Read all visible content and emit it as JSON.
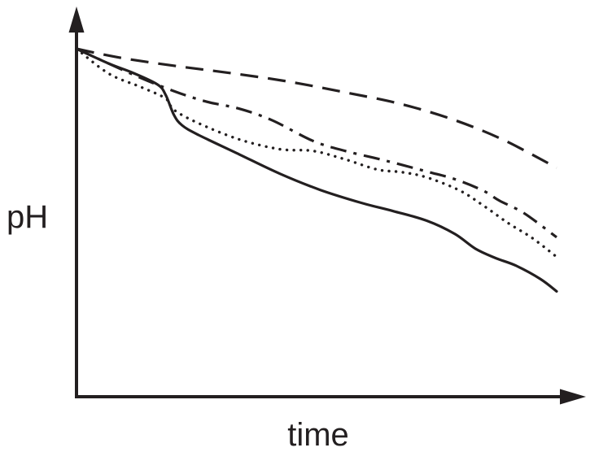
{
  "chart_data": {
    "type": "line",
    "title": "",
    "xlabel": "time",
    "ylabel": "pH",
    "xlim": [
      0,
      100
    ],
    "ylim": [
      0,
      100
    ],
    "grid": false,
    "legend": "none",
    "axis_color": "#231f20",
    "series": [
      {
        "style": "dashed",
        "x": [
          0,
          9.3,
          21.2,
          32.2,
          44.1,
          55.9,
          67.8,
          78.8,
          89.0,
          100
        ],
        "y": [
          100,
          96.1,
          92.5,
          89.6,
          86.0,
          81.4,
          76.3,
          69.5,
          61.0,
          49.2
        ]
      },
      {
        "style": "dashdot",
        "x": [
          0,
          11.9,
          20.3,
          27.1,
          33.9,
          40.7,
          49.2,
          55.9,
          64.4,
          72.9,
          78.8,
          84.7,
          88.1,
          93.2,
          100
        ],
        "y": [
          100,
          88.9,
          81.9,
          77.4,
          74.4,
          69.5,
          60.7,
          56.4,
          52.2,
          47.6,
          44.3,
          39.4,
          35.1,
          29.8,
          19.5
        ]
      },
      {
        "style": "dotted",
        "x": [
          0,
          6.8,
          13.6,
          18.6,
          20.3,
          25.4,
          33.9,
          42.4,
          49.2,
          55.9,
          62.7,
          67.8,
          72.9,
          79.7,
          84.7,
          89.8,
          94.9,
          100
        ],
        "y": [
          100,
          89.3,
          83.5,
          78.7,
          73.9,
          68.2,
          61.3,
          57.1,
          56.4,
          52.8,
          48.4,
          47.3,
          45.1,
          39.6,
          33.1,
          25.7,
          19.2,
          11.1
        ]
      },
      {
        "style": "solid",
        "x": [
          0,
          6.8,
          11.9,
          16.9,
          18.6,
          20.3,
          22.0,
          25.4,
          33.9,
          42.4,
          50.8,
          59.3,
          66.1,
          72.9,
          78.8,
          83.1,
          87.3,
          91.5,
          96.6,
          100
        ],
        "y": [
          100,
          93.6,
          89.6,
          84.7,
          80.2,
          71.7,
          67.3,
          63.2,
          54.9,
          46.6,
          39.7,
          34.2,
          30.6,
          26.6,
          20.9,
          14.6,
          10.6,
          7.4,
          1.7,
          -3.6
        ]
      }
    ]
  }
}
